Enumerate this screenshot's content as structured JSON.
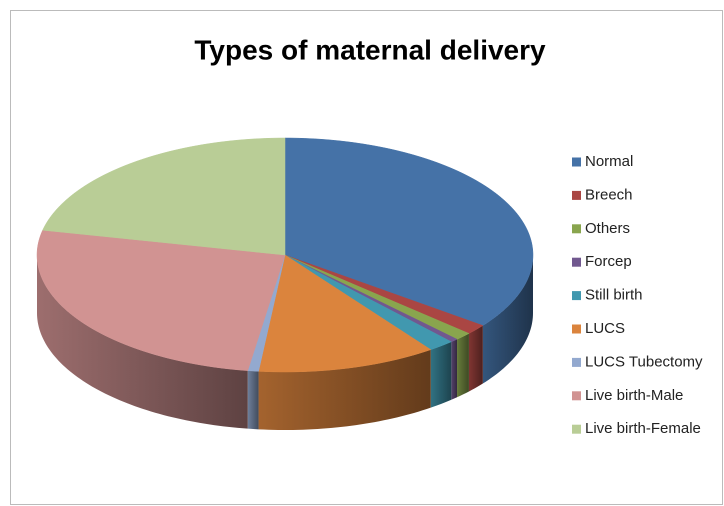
{
  "chart_data": {
    "type": "pie3d",
    "title": "Types of maternal delivery",
    "categories": [
      "Normal",
      "Breech",
      "Others",
      "Forcep",
      "Still birth",
      "LUCS",
      "LUCS Tubectomy",
      "Live birth-Male",
      "Live birth-Female"
    ],
    "values": [
      35.3,
      1.4,
      1.1,
      0.5,
      1.7,
      11.7,
      0.7,
      26,
      21.6
    ],
    "colors": [
      "#4572a7",
      "#aa4643",
      "#89a54e",
      "#71588f",
      "#4198af",
      "#db843d",
      "#93a9cf",
      "#d19392",
      "#b9cd96"
    ],
    "legend": "right"
  }
}
